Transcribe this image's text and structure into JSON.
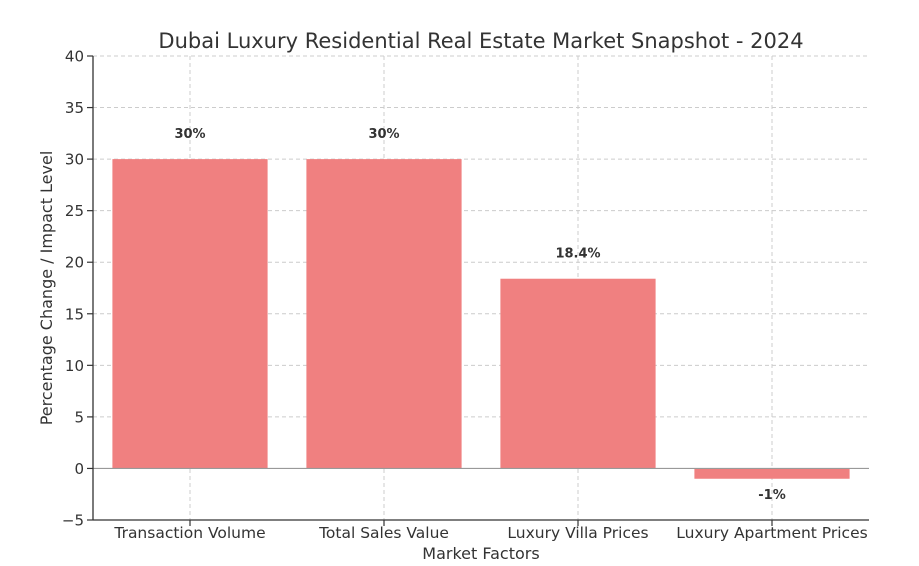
{
  "chart_data": {
    "type": "bar",
    "title": "Dubai Luxury Residential Real Estate Market Snapshot - 2024",
    "xlabel": "Market Factors",
    "ylabel": "Percentage Change / Impact Level",
    "categories": [
      "Transaction Volume",
      "Total Sales Value",
      "Luxury Villa Prices",
      "Luxury Apartment Prices"
    ],
    "values": [
      30,
      30,
      18.4,
      -1
    ],
    "data_labels": [
      "30%",
      "30%",
      "18.4%",
      "-1%"
    ],
    "ylim": [
      -5,
      40
    ],
    "yticks": [
      -5,
      0,
      5,
      10,
      15,
      20,
      25,
      30,
      35,
      40
    ],
    "ytick_labels": [
      "−5",
      "0",
      "5",
      "10",
      "15",
      "20",
      "25",
      "30",
      "35",
      "40"
    ],
    "grid": true,
    "colors": {
      "bar": "#f08080",
      "axis": "#333333",
      "grid": "#cccccc",
      "text": "#333333",
      "zero_line": "#999999"
    }
  }
}
